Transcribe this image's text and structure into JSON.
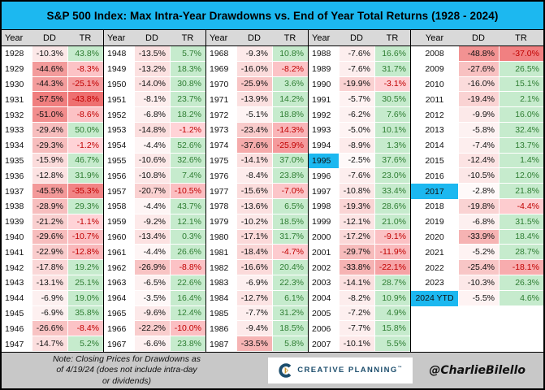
{
  "title": "S&P 500 Index: Max Intra-Year Drawdowns vs. End of Year Total Returns (1928 - 2024)",
  "footer": {
    "note": "Note: Closing Prices for Drawdowns as\nof 4/19/24 (does not include intra-day\nor dividends)",
    "logo_text": "CREATIVE PLANNING",
    "logo_tm": "™",
    "credit": "@CharlieBilello"
  },
  "colors": {
    "title_bg": "#1cb8f0",
    "highlight_bg": "#1cb8f0",
    "header_bg": "#d9d9d9",
    "footer_bg": "#c8c8c8",
    "tr_positive_bg": "#c6ebcd",
    "tr_positive_text": "#2e7d32",
    "tr_negative_text": "#c00000",
    "dd_scale_white": "#ffffff",
    "dd_scale_max": "#f07e7e",
    "dd_scale_limit": 57.5,
    "tr_neg_scale_light": "#ffd6da",
    "tr_neg_scale_dark": "#ee7070",
    "tr_neg_scale_limit": 44,
    "logo_navy": "#1d4e6d",
    "logo_gold": "#c9952c"
  },
  "chart_data": {
    "type": "table",
    "title": "S&P 500 Index: Max Intra-Year Drawdowns vs. End of Year Total Returns (1928 - 2024)",
    "columns": [
      "Year",
      "DD",
      "TR"
    ],
    "rows_per_group": 20,
    "highlighted_years": [
      "1995",
      "2017",
      "2024 YTD"
    ],
    "groups": [
      [
        [
          "1928",
          "-10.3%",
          "43.8%"
        ],
        [
          "1929",
          "-44.6%",
          "-8.3%"
        ],
        [
          "1930",
          "-44.3%",
          "-25.1%"
        ],
        [
          "1931",
          "-57.5%",
          "-43.8%"
        ],
        [
          "1932",
          "-51.0%",
          "-8.6%"
        ],
        [
          "1933",
          "-29.4%",
          "50.0%"
        ],
        [
          "1934",
          "-29.3%",
          "-1.2%"
        ],
        [
          "1935",
          "-15.9%",
          "46.7%"
        ],
        [
          "1936",
          "-12.8%",
          "31.9%"
        ],
        [
          "1937",
          "-45.5%",
          "-35.3%"
        ],
        [
          "1938",
          "-28.9%",
          "29.3%"
        ],
        [
          "1939",
          "-21.2%",
          "-1.1%"
        ],
        [
          "1940",
          "-29.6%",
          "-10.7%"
        ],
        [
          "1941",
          "-22.9%",
          "-12.8%"
        ],
        [
          "1942",
          "-17.8%",
          "19.2%"
        ],
        [
          "1943",
          "-13.1%",
          "25.1%"
        ],
        [
          "1944",
          "-6.9%",
          "19.0%"
        ],
        [
          "1945",
          "-6.9%",
          "35.8%"
        ],
        [
          "1946",
          "-26.6%",
          "-8.4%"
        ],
        [
          "1947",
          "-14.7%",
          "5.2%"
        ]
      ],
      [
        [
          "1948",
          "-13.5%",
          "5.7%"
        ],
        [
          "1949",
          "-13.2%",
          "18.3%"
        ],
        [
          "1950",
          "-14.0%",
          "30.8%"
        ],
        [
          "1951",
          "-8.1%",
          "23.7%"
        ],
        [
          "1952",
          "-6.8%",
          "18.2%"
        ],
        [
          "1953",
          "-14.8%",
          "-1.2%"
        ],
        [
          "1954",
          "-4.4%",
          "52.6%"
        ],
        [
          "1955",
          "-10.6%",
          "32.6%"
        ],
        [
          "1956",
          "-10.8%",
          "7.4%"
        ],
        [
          "1957",
          "-20.7%",
          "-10.5%"
        ],
        [
          "1958",
          "-4.4%",
          "43.7%"
        ],
        [
          "1959",
          "-9.2%",
          "12.1%"
        ],
        [
          "1960",
          "-13.4%",
          "0.3%"
        ],
        [
          "1961",
          "-4.4%",
          "26.6%"
        ],
        [
          "1962",
          "-26.9%",
          "-8.8%"
        ],
        [
          "1963",
          "-6.5%",
          "22.6%"
        ],
        [
          "1964",
          "-3.5%",
          "16.4%"
        ],
        [
          "1965",
          "-9.6%",
          "12.4%"
        ],
        [
          "1966",
          "-22.2%",
          "-10.0%"
        ],
        [
          "1967",
          "-6.6%",
          "23.8%"
        ]
      ],
      [
        [
          "1968",
          "-9.3%",
          "10.8%"
        ],
        [
          "1969",
          "-16.0%",
          "-8.2%"
        ],
        [
          "1970",
          "-25.9%",
          "3.6%"
        ],
        [
          "1971",
          "-13.9%",
          "14.2%"
        ],
        [
          "1972",
          "-5.1%",
          "18.8%"
        ],
        [
          "1973",
          "-23.4%",
          "-14.3%"
        ],
        [
          "1974",
          "-37.6%",
          "-25.9%"
        ],
        [
          "1975",
          "-14.1%",
          "37.0%"
        ],
        [
          "1976",
          "-8.4%",
          "23.8%"
        ],
        [
          "1977",
          "-15.6%",
          "-7.0%"
        ],
        [
          "1978",
          "-13.6%",
          "6.5%"
        ],
        [
          "1979",
          "-10.2%",
          "18.5%"
        ],
        [
          "1980",
          "-17.1%",
          "31.7%"
        ],
        [
          "1981",
          "-18.4%",
          "-4.7%"
        ],
        [
          "1982",
          "-16.6%",
          "20.4%"
        ],
        [
          "1983",
          "-6.9%",
          "22.3%"
        ],
        [
          "1984",
          "-12.7%",
          "6.1%"
        ],
        [
          "1985",
          "-7.7%",
          "31.2%"
        ],
        [
          "1986",
          "-9.4%",
          "18.5%"
        ],
        [
          "1987",
          "-33.5%",
          "5.8%"
        ]
      ],
      [
        [
          "1988",
          "-7.6%",
          "16.6%"
        ],
        [
          "1989",
          "-7.6%",
          "31.7%"
        ],
        [
          "1990",
          "-19.9%",
          "-3.1%"
        ],
        [
          "1991",
          "-5.7%",
          "30.5%"
        ],
        [
          "1992",
          "-6.2%",
          "7.6%"
        ],
        [
          "1993",
          "-5.0%",
          "10.1%"
        ],
        [
          "1994",
          "-8.9%",
          "1.3%"
        ],
        [
          "1995",
          "-2.5%",
          "37.6%"
        ],
        [
          "1996",
          "-7.6%",
          "23.0%"
        ],
        [
          "1997",
          "-10.8%",
          "33.4%"
        ],
        [
          "1998",
          "-19.3%",
          "28.6%"
        ],
        [
          "1999",
          "-12.1%",
          "21.0%"
        ],
        [
          "2000",
          "-17.2%",
          "-9.1%"
        ],
        [
          "2001",
          "-29.7%",
          "-11.9%"
        ],
        [
          "2002",
          "-33.8%",
          "-22.1%"
        ],
        [
          "2003",
          "-14.1%",
          "28.7%"
        ],
        [
          "2004",
          "-8.2%",
          "10.9%"
        ],
        [
          "2005",
          "-7.2%",
          "4.9%"
        ],
        [
          "2006",
          "-7.7%",
          "15.8%"
        ],
        [
          "2007",
          "-10.1%",
          "5.5%"
        ]
      ],
      [
        [
          "2008",
          "-48.8%",
          "-37.0%"
        ],
        [
          "2009",
          "-27.6%",
          "26.5%"
        ],
        [
          "2010",
          "-16.0%",
          "15.1%"
        ],
        [
          "2011",
          "-19.4%",
          "2.1%"
        ],
        [
          "2012",
          "-9.9%",
          "16.0%"
        ],
        [
          "2013",
          "-5.8%",
          "32.4%"
        ],
        [
          "2014",
          "-7.4%",
          "13.7%"
        ],
        [
          "2015",
          "-12.4%",
          "1.4%"
        ],
        [
          "2016",
          "-10.5%",
          "12.0%"
        ],
        [
          "2017",
          "-2.8%",
          "21.8%"
        ],
        [
          "2018",
          "-19.8%",
          "-4.4%"
        ],
        [
          "2019",
          "-6.8%",
          "31.5%"
        ],
        [
          "2020",
          "-33.9%",
          "18.4%"
        ],
        [
          "2021",
          "-5.2%",
          "28.7%"
        ],
        [
          "2022",
          "-25.4%",
          "-18.1%"
        ],
        [
          "2023",
          "-10.3%",
          "26.3%"
        ],
        [
          "2024 YTD",
          "-5.5%",
          "4.6%"
        ]
      ]
    ]
  }
}
